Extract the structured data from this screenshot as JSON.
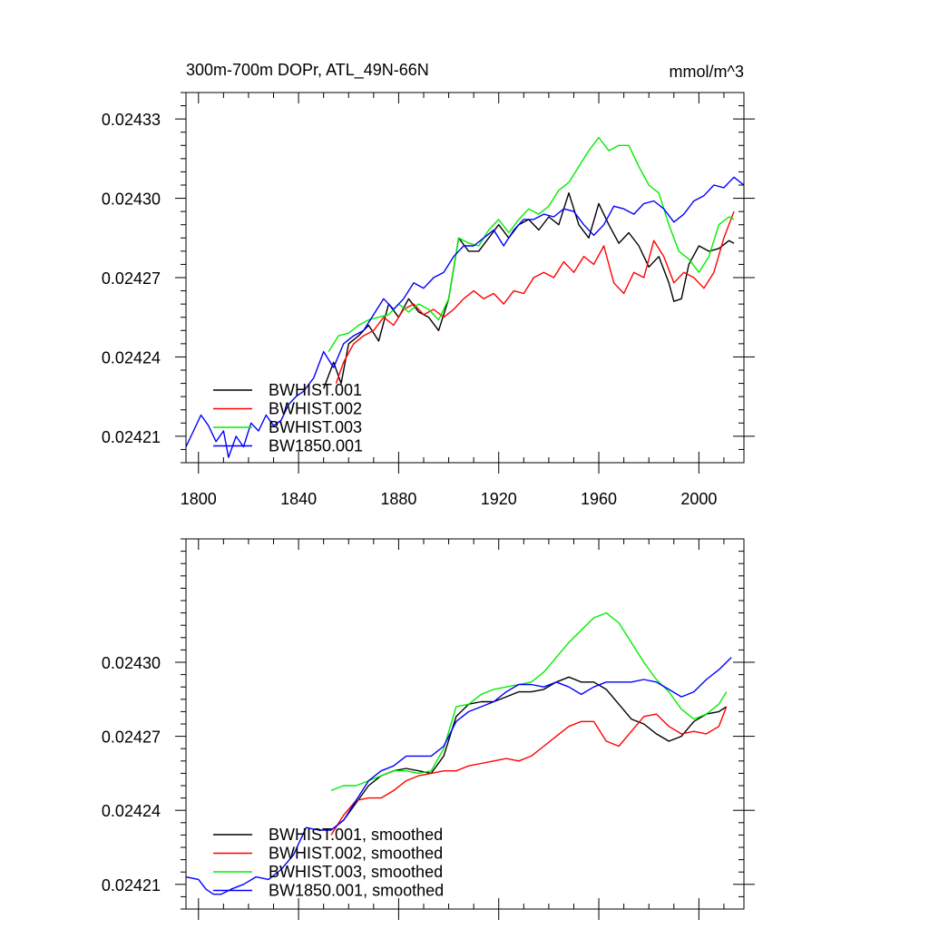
{
  "chart_data": [
    {
      "type": "line",
      "title": "300m-700m DOPr, ATL_49N-66N",
      "units": "mmol/m^3",
      "xlim": [
        1795,
        2018
      ],
      "ylim": [
        0.0242,
        0.02434
      ],
      "xticks": [
        1800,
        1840,
        1880,
        1920,
        1960,
        2000
      ],
      "xtick_labels": [
        "1800",
        "1840",
        "1880",
        "1920",
        "1960",
        "2000"
      ],
      "yticks": [
        0.02421,
        0.02424,
        0.02427,
        0.0243,
        0.02433
      ],
      "ytick_labels": [
        "0.02421",
        "0.02424",
        "0.02427",
        "0.02430",
        "0.02433"
      ],
      "legend_position": "bottom-left",
      "series": [
        {
          "name": "BWHIST.001",
          "color": "#000000",
          "x": [
            1850,
            1854,
            1857,
            1860,
            1864,
            1868,
            1872,
            1876,
            1880,
            1884,
            1888,
            1892,
            1896,
            1900,
            1904,
            1908,
            1912,
            1916,
            1920,
            1924,
            1928,
            1932,
            1936,
            1940,
            1944,
            1948,
            1952,
            1956,
            1960,
            1964,
            1968,
            1972,
            1976,
            1980,
            1984,
            1988,
            1990,
            1993,
            1996,
            2000,
            2004,
            2008,
            2012,
            2014
          ],
          "y": [
            0.024228,
            0.024238,
            0.02423,
            0.024245,
            0.024248,
            0.024252,
            0.024246,
            0.02426,
            0.024255,
            0.024262,
            0.024257,
            0.024255,
            0.02425,
            0.024262,
            0.024285,
            0.02428,
            0.02428,
            0.024285,
            0.02429,
            0.024285,
            0.02429,
            0.024292,
            0.024288,
            0.024293,
            0.02429,
            0.024302,
            0.02429,
            0.024285,
            0.024298,
            0.02429,
            0.024283,
            0.024287,
            0.024282,
            0.024274,
            0.024278,
            0.024268,
            0.024261,
            0.024262,
            0.024275,
            0.024282,
            0.02428,
            0.024281,
            0.024284,
            0.024283
          ]
        },
        {
          "name": "BWHIST.002",
          "color": "#ff0000",
          "x": [
            1855,
            1858,
            1862,
            1866,
            1870,
            1874,
            1878,
            1882,
            1886,
            1890,
            1894,
            1898,
            1902,
            1906,
            1910,
            1914,
            1918,
            1922,
            1926,
            1930,
            1934,
            1938,
            1942,
            1946,
            1950,
            1954,
            1958,
            1962,
            1966,
            1970,
            1974,
            1978,
            1982,
            1986,
            1990,
            1994,
            1998,
            2002,
            2006,
            2010,
            2014
          ],
          "y": [
            0.02423,
            0.024238,
            0.024245,
            0.024248,
            0.02425,
            0.024255,
            0.024252,
            0.024258,
            0.02426,
            0.024256,
            0.024258,
            0.024255,
            0.024258,
            0.024262,
            0.024265,
            0.024262,
            0.024264,
            0.02426,
            0.024265,
            0.024264,
            0.02427,
            0.024272,
            0.02427,
            0.024276,
            0.024272,
            0.024278,
            0.024275,
            0.024282,
            0.024268,
            0.024264,
            0.024272,
            0.02427,
            0.024284,
            0.024278,
            0.024268,
            0.024272,
            0.02427,
            0.024266,
            0.024272,
            0.024285,
            0.024295
          ]
        },
        {
          "name": "BWHIST.003",
          "color": "#00ee00",
          "x": [
            1852,
            1856,
            1860,
            1864,
            1868,
            1872,
            1876,
            1880,
            1884,
            1888,
            1892,
            1896,
            1900,
            1904,
            1908,
            1912,
            1916,
            1920,
            1924,
            1928,
            1932,
            1936,
            1940,
            1944,
            1948,
            1952,
            1956,
            1960,
            1964,
            1968,
            1972,
            1976,
            1980,
            1984,
            1988,
            1992,
            1996,
            2000,
            2004,
            2008,
            2012,
            2014
          ],
          "y": [
            0.024242,
            0.024248,
            0.024249,
            0.024252,
            0.024254,
            0.024255,
            0.024256,
            0.02426,
            0.024257,
            0.02426,
            0.024258,
            0.024254,
            0.024262,
            0.024285,
            0.024283,
            0.024282,
            0.024288,
            0.024292,
            0.024287,
            0.024292,
            0.024296,
            0.024294,
            0.024297,
            0.024303,
            0.024306,
            0.024312,
            0.024318,
            0.024323,
            0.024318,
            0.02432,
            0.02432,
            0.024312,
            0.024305,
            0.024302,
            0.02429,
            0.02428,
            0.024277,
            0.024272,
            0.024278,
            0.02429,
            0.024293,
            0.024292
          ]
        },
        {
          "name": "BW1850.001",
          "color": "#0000ff",
          "x": [
            1795,
            1798,
            1801,
            1804,
            1807,
            1810,
            1812,
            1815,
            1818,
            1821,
            1824,
            1827,
            1830,
            1833,
            1836,
            1839,
            1842,
            1846,
            1850,
            1854,
            1858,
            1862,
            1866,
            1870,
            1874,
            1878,
            1882,
            1886,
            1890,
            1894,
            1898,
            1902,
            1906,
            1910,
            1914,
            1918,
            1922,
            1926,
            1930,
            1934,
            1938,
            1942,
            1946,
            1950,
            1954,
            1958,
            1962,
            1966,
            1970,
            1974,
            1978,
            1982,
            1986,
            1990,
            1994,
            1998,
            2002,
            2006,
            2010,
            2014,
            2018
          ],
          "y": [
            0.024206,
            0.024212,
            0.024218,
            0.024214,
            0.024208,
            0.024212,
            0.024202,
            0.02421,
            0.024206,
            0.024215,
            0.024212,
            0.024218,
            0.024214,
            0.024216,
            0.024222,
            0.024225,
            0.024227,
            0.024232,
            0.024242,
            0.024236,
            0.024245,
            0.024248,
            0.02425,
            0.024256,
            0.024262,
            0.024258,
            0.024262,
            0.024268,
            0.024266,
            0.02427,
            0.024272,
            0.024278,
            0.024282,
            0.024282,
            0.024285,
            0.024288,
            0.024282,
            0.024288,
            0.024292,
            0.024292,
            0.024294,
            0.024293,
            0.024296,
            0.024295,
            0.02429,
            0.024286,
            0.02429,
            0.024297,
            0.024296,
            0.024294,
            0.024298,
            0.024299,
            0.024296,
            0.024291,
            0.024294,
            0.024299,
            0.024301,
            0.024305,
            0.024304,
            0.024308,
            0.024305
          ]
        }
      ]
    },
    {
      "type": "line",
      "title": "",
      "xlim": [
        1795,
        2018
      ],
      "ylim": [
        0.0242,
        0.02435
      ],
      "xticks": [
        1800,
        1840,
        1880,
        1920,
        1960,
        2000
      ],
      "yticks": [
        0.02421,
        0.02424,
        0.02427,
        0.0243
      ],
      "ytick_labels": [
        "0.02421",
        "0.02424",
        "0.02427",
        "0.02430"
      ],
      "legend_position": "bottom-left",
      "series": [
        {
          "name": "BWHIST.001, smoothed",
          "color": "#000000",
          "x": [
            1853,
            1858,
            1863,
            1868,
            1873,
            1878,
            1883,
            1888,
            1893,
            1898,
            1903,
            1908,
            1913,
            1918,
            1923,
            1928,
            1933,
            1938,
            1943,
            1948,
            1953,
            1958,
            1963,
            1968,
            1973,
            1978,
            1983,
            1988,
            1993,
            1998,
            2003,
            2008,
            2011
          ],
          "y": [
            0.024232,
            0.024236,
            0.024243,
            0.02425,
            0.024254,
            0.024256,
            0.024257,
            0.024256,
            0.024255,
            0.024262,
            0.024278,
            0.024283,
            0.024284,
            0.024284,
            0.024286,
            0.024288,
            0.024288,
            0.024289,
            0.024292,
            0.024294,
            0.024292,
            0.024292,
            0.024289,
            0.024283,
            0.024277,
            0.024275,
            0.024271,
            0.024268,
            0.02427,
            0.024276,
            0.024279,
            0.02428,
            0.024282
          ]
        },
        {
          "name": "BWHIST.002, smoothed",
          "color": "#ff0000",
          "x": [
            1853,
            1858,
            1863,
            1868,
            1873,
            1878,
            1883,
            1888,
            1893,
            1898,
            1903,
            1908,
            1913,
            1918,
            1923,
            1928,
            1933,
            1938,
            1943,
            1948,
            1953,
            1958,
            1963,
            1968,
            1973,
            1978,
            1983,
            1988,
            1993,
            1998,
            2003,
            2008,
            2011
          ],
          "y": [
            0.02423,
            0.024238,
            0.024244,
            0.024245,
            0.024245,
            0.024248,
            0.024252,
            0.024254,
            0.024255,
            0.024256,
            0.024256,
            0.024258,
            0.024259,
            0.02426,
            0.024261,
            0.02426,
            0.024262,
            0.024266,
            0.02427,
            0.024274,
            0.024276,
            0.024276,
            0.024268,
            0.024266,
            0.024272,
            0.024278,
            0.024279,
            0.024274,
            0.024271,
            0.024272,
            0.024271,
            0.024274,
            0.024282
          ]
        },
        {
          "name": "BWHIST.003, smoothed",
          "color": "#00ee00",
          "x": [
            1853,
            1858,
            1863,
            1868,
            1873,
            1878,
            1883,
            1888,
            1893,
            1898,
            1903,
            1908,
            1913,
            1918,
            1923,
            1928,
            1933,
            1938,
            1943,
            1948,
            1953,
            1958,
            1963,
            1968,
            1973,
            1978,
            1983,
            1988,
            1993,
            1998,
            2003,
            2008,
            2011
          ],
          "y": [
            0.024248,
            0.02425,
            0.02425,
            0.024252,
            0.024254,
            0.024256,
            0.024256,
            0.024255,
            0.024256,
            0.024265,
            0.024282,
            0.024283,
            0.024287,
            0.024289,
            0.02429,
            0.024291,
            0.024292,
            0.024296,
            0.024302,
            0.024308,
            0.024313,
            0.024318,
            0.02432,
            0.024316,
            0.024308,
            0.0243,
            0.024293,
            0.024288,
            0.024281,
            0.024277,
            0.024279,
            0.024283,
            0.024288
          ]
        },
        {
          "name": "BW1850.001, smoothed",
          "color": "#0000ff",
          "x": [
            1795,
            1800,
            1803,
            1806,
            1809,
            1813,
            1818,
            1823,
            1828,
            1833,
            1838,
            1843,
            1848,
            1853,
            1858,
            1863,
            1868,
            1873,
            1878,
            1883,
            1888,
            1893,
            1898,
            1903,
            1908,
            1913,
            1918,
            1923,
            1928,
            1933,
            1938,
            1943,
            1948,
            1953,
            1958,
            1963,
            1968,
            1973,
            1978,
            1983,
            1988,
            1993,
            1998,
            2003,
            2008,
            2013
          ],
          "y": [
            0.024213,
            0.024212,
            0.024208,
            0.024206,
            0.024206,
            0.024208,
            0.02421,
            0.024213,
            0.024212,
            0.024216,
            0.024222,
            0.024233,
            0.024232,
            0.024232,
            0.024236,
            0.024244,
            0.024252,
            0.024256,
            0.024258,
            0.024262,
            0.024262,
            0.024262,
            0.024266,
            0.024276,
            0.02428,
            0.024282,
            0.024284,
            0.024288,
            0.024291,
            0.024291,
            0.02429,
            0.024292,
            0.02429,
            0.024287,
            0.02429,
            0.024292,
            0.024292,
            0.024292,
            0.024293,
            0.024292,
            0.024289,
            0.024286,
            0.024288,
            0.024293,
            0.024297,
            0.024302
          ]
        }
      ]
    }
  ]
}
